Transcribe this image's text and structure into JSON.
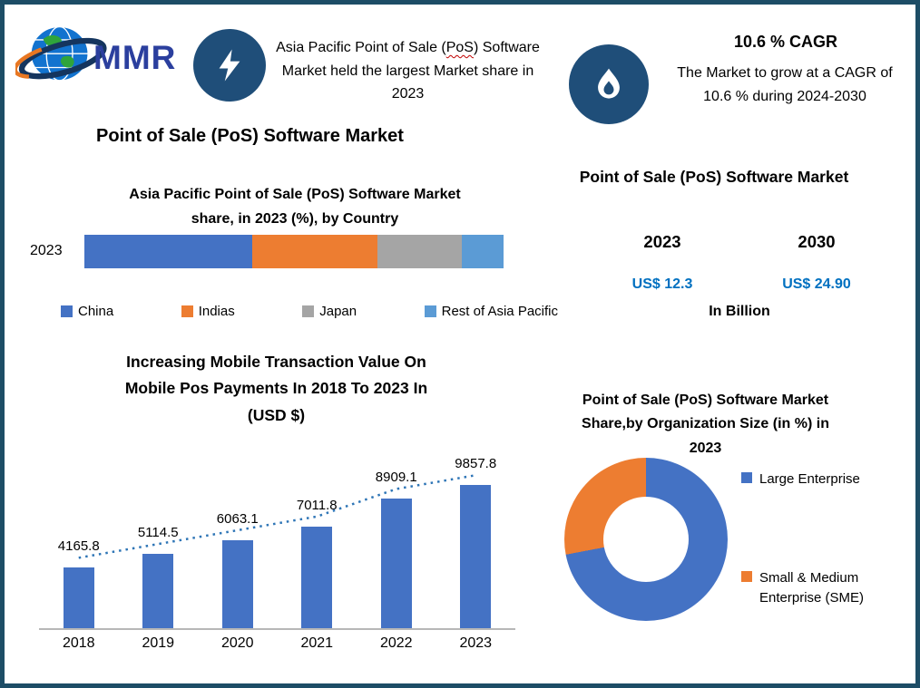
{
  "theme": {
    "border": "#1d4d66",
    "badge_navy": "#1f4e79",
    "value_blue": "#0070c0",
    "bar_blue": "#4472c4",
    "orange": "#ed7d31",
    "gray": "#a5a5a5",
    "light_blue": "#5b9bd5",
    "trend_blue": "#2e75b6"
  },
  "header": {
    "logo_text": "MMR",
    "highlight": {
      "prefix": "Asia Pacific Point of Sale (",
      "underlined": "PoS",
      "suffix": ") Software Market held the largest Market share in 2023"
    },
    "cagr": {
      "title": "10.6 % CAGR",
      "lines": [
        "The Market to grow at a CAGR of",
        "10.6 % during 2024-2030"
      ]
    }
  },
  "left": {
    "title": "Point of Sale (PoS) Software Market"
  },
  "right": {
    "title": "Point of Sale (PoS) Software Market",
    "cols": [
      {
        "year": "2023",
        "value": "US$ 12.3"
      },
      {
        "year": "2030",
        "value": "US$ 24.90"
      }
    ],
    "unit_label": "In Billion"
  },
  "chart_data": [
    {
      "id": "apac-share-by-country",
      "type": "bar",
      "subtype": "stacked-horizontal",
      "title": "Asia Pacific Point of Sale (PoS) Software  Market share, in 2023 (%), by Country",
      "title_lines": [
        "Asia Pacific Point of Sale (PoS) Software  Market",
        "share, in 2023 (%), by Country"
      ],
      "categories": [
        "2023"
      ],
      "unit": "%",
      "series": [
        {
          "name": "China",
          "value": 40,
          "color": "#4472c4"
        },
        {
          "name": "Indias",
          "value": 30,
          "color": "#ed7d31"
        },
        {
          "name": "Japan",
          "value": 20,
          "color": "#a5a5a5"
        },
        {
          "name": "Rest of Asia Pacific",
          "value": 10,
          "color": "#5b9bd5"
        }
      ],
      "legend_position": "bottom"
    },
    {
      "id": "mobile-pos-transaction-value",
      "type": "bar",
      "title": "Increasing Mobile Transaction Value On Mobile Pos Payments In 2018 To 2023 In (USD $)",
      "title_lines": [
        "Increasing Mobile Transaction Value On",
        "Mobile Pos Payments In 2018 To 2023 In",
        "(USD $)"
      ],
      "categories": [
        "2018",
        "2019",
        "2020",
        "2021",
        "2022",
        "2023"
      ],
      "values": [
        4165.8,
        5114.5,
        6063.1,
        7011.8,
        8909.1,
        9857.8
      ],
      "bar_color": "#4472c4",
      "trendline": true,
      "trend_color": "#2e75b6",
      "ylim": [
        0,
        10000
      ],
      "grid": false
    },
    {
      "id": "share-by-organization-size",
      "type": "pie",
      "subtype": "donut",
      "title": "Point of Sale (PoS) Software  Market Share,by Organization Size (in %) in 2023",
      "title_lines": [
        "Point of Sale (PoS) Software  Market",
        "Share,by Organization Size (in %) in",
        "2023"
      ],
      "slices": [
        {
          "label": "Large Enterprise",
          "value": 72,
          "color": "#4472c4"
        },
        {
          "label": "Small & Medium Enterprise (SME)",
          "value": 28,
          "color": "#ed7d31"
        }
      ],
      "legend_sme_lines": [
        "Small & Medium",
        "Enterprise (SME)"
      ],
      "legend_position": "right"
    }
  ]
}
